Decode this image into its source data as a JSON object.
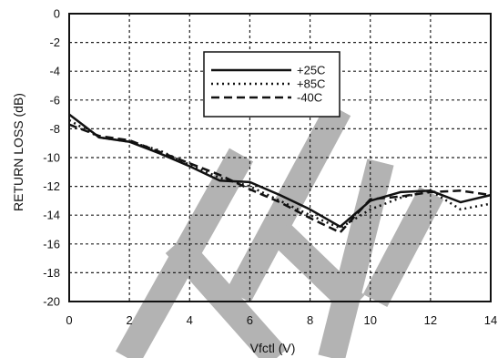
{
  "chart_data": {
    "type": "line",
    "xlabel": "Vfctl (V)",
    "ylabel": "RETURN LOSS (dB)",
    "xlim": [
      0,
      14
    ],
    "ylim": [
      -20,
      0
    ],
    "xticks": [
      0,
      2,
      4,
      6,
      8,
      10,
      12,
      14
    ],
    "xtick_labels": [
      "0",
      "2",
      "4",
      "6",
      "8",
      "10",
      "12",
      "14"
    ],
    "yticks": [
      0,
      -2,
      -4,
      -6,
      -8,
      -10,
      -12,
      -14,
      -16,
      -18,
      -20
    ],
    "ytick_labels": [
      "0",
      "-2",
      "-4",
      "-6",
      "-8",
      "-10",
      "-12",
      "-14",
      "-16",
      "-18",
      "-20"
    ],
    "grid": true,
    "legend_position": "top-center",
    "watermark_colors": [
      "#b3b3b3"
    ],
    "series": [
      {
        "name": "+25C",
        "style": "solid",
        "x": [
          0,
          1,
          2,
          3,
          4,
          5,
          6,
          7,
          8,
          9,
          10,
          11,
          12,
          13,
          14
        ],
        "y": [
          -7.0,
          -8.6,
          -8.9,
          -9.7,
          -10.6,
          -11.6,
          -11.7,
          -12.6,
          -13.6,
          -14.8,
          -13.0,
          -12.4,
          -12.3,
          -13.1,
          -12.6
        ]
      },
      {
        "name": "+85C",
        "style": "dotted",
        "x": [
          0,
          1,
          2,
          3,
          4,
          5,
          6,
          7,
          8,
          9,
          10,
          11,
          12,
          13,
          14
        ],
        "y": [
          -7.4,
          -8.6,
          -8.9,
          -9.5,
          -10.5,
          -11.4,
          -12.0,
          -13.0,
          -14.0,
          -14.9,
          -13.6,
          -12.8,
          -12.3,
          -13.6,
          -13.2
        ]
      },
      {
        "name": "-40C",
        "style": "dashed",
        "x": [
          0,
          1,
          2,
          3,
          4,
          5,
          6,
          7,
          8,
          9,
          10,
          11,
          12,
          13,
          14
        ],
        "y": [
          -7.7,
          -8.5,
          -8.8,
          -9.6,
          -10.4,
          -11.2,
          -12.2,
          -13.1,
          -14.2,
          -15.2,
          -12.9,
          -12.7,
          -12.4,
          -12.3,
          -12.6
        ]
      }
    ]
  }
}
